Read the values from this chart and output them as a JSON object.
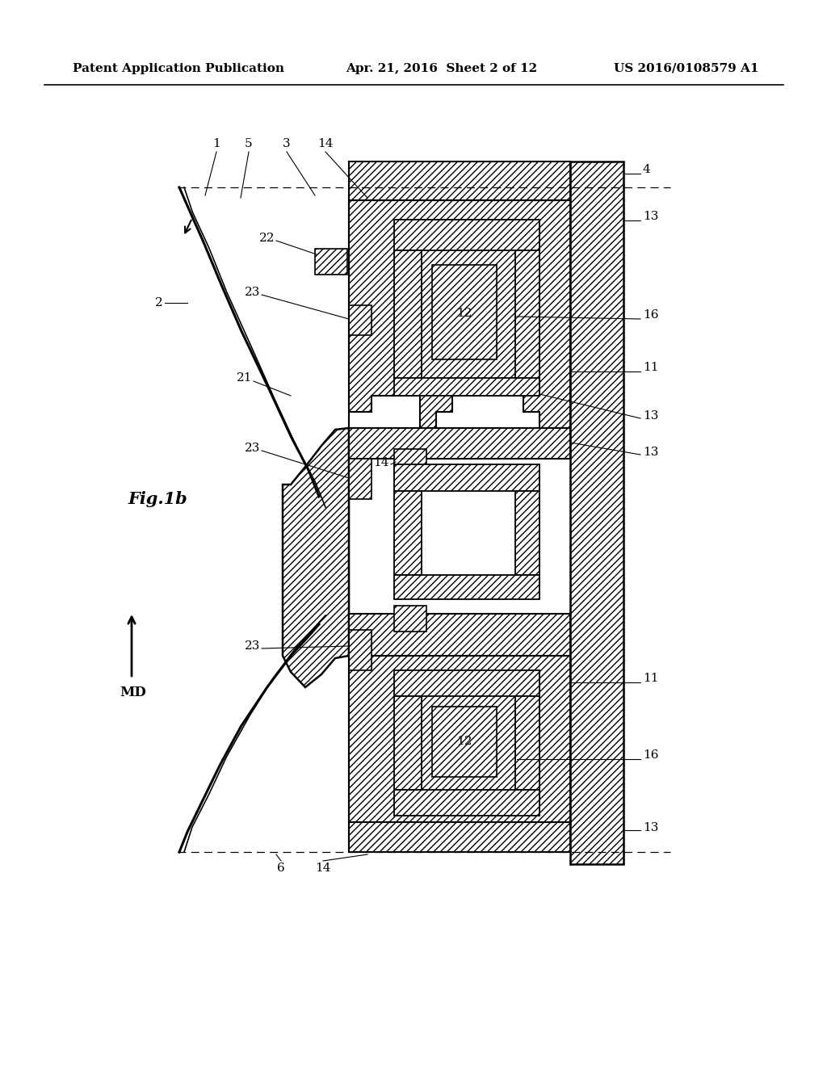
{
  "bg_color": "#ffffff",
  "header_left": "Patent Application Publication",
  "header_mid": "Apr. 21, 2016  Sheet 2 of 12",
  "header_right": "US 2016/0108579 A1",
  "fig_label": "Fig.1b",
  "md_label": "MD"
}
